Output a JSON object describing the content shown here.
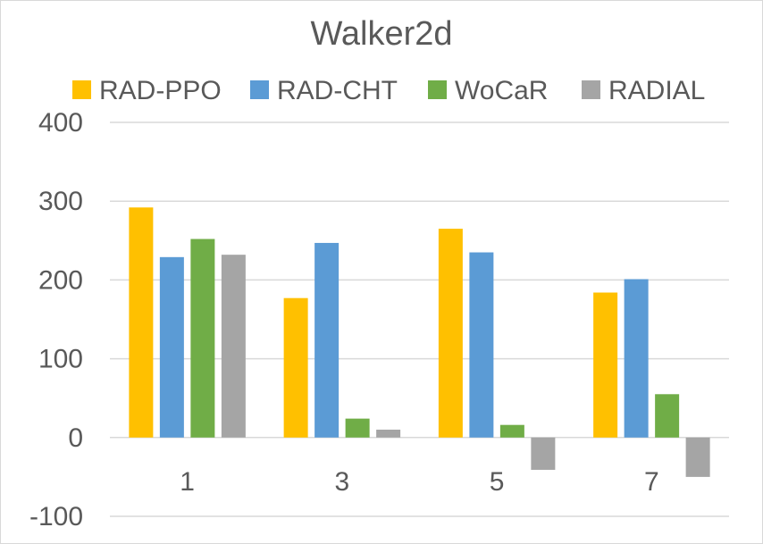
{
  "chart_data": {
    "type": "bar",
    "title": "Walker2d",
    "categories": [
      "1",
      "3",
      "5",
      "7"
    ],
    "series": [
      {
        "name": "RAD-PPO",
        "color": "#ffc000",
        "values": [
          292,
          177,
          265,
          184
        ]
      },
      {
        "name": "RAD-CHT",
        "color": "#5b9bd5",
        "values": [
          229,
          247,
          235,
          201
        ]
      },
      {
        "name": "WoCaR",
        "color": "#70ad47",
        "values": [
          252,
          24,
          16,
          55
        ]
      },
      {
        "name": "RADIAL",
        "color": "#a5a5a5",
        "values": [
          232,
          10,
          -41,
          -50
        ]
      }
    ],
    "ylim": [
      -100,
      400
    ],
    "yticks": [
      -100,
      0,
      100,
      200,
      300,
      400
    ],
    "ytick_labels": [
      "-100",
      "0",
      "100",
      "200",
      "300",
      "400"
    ],
    "xlabel": "",
    "ylabel": "",
    "grid": true,
    "legend_position": "top"
  }
}
